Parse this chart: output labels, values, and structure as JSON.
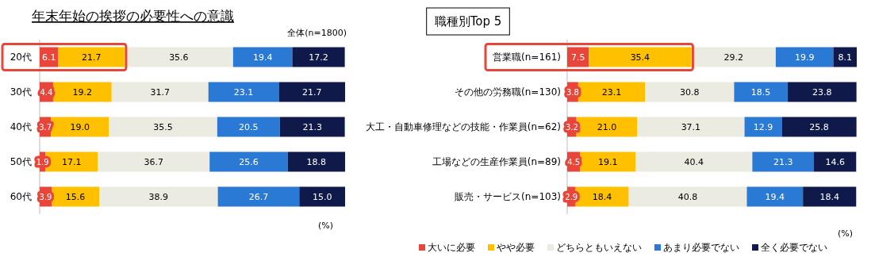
{
  "chart_data": [
    {
      "type": "bar",
      "orientation": "horizontal",
      "stacked": true,
      "title": "年末年始の挨拶の必要性への意識",
      "categories": [
        "20代",
        "30代",
        "40代",
        "50代",
        "60代"
      ],
      "series": [
        {
          "color": "#e8463a",
          "values": [
            6.1,
            4.4,
            3.7,
            1.9,
            3.9
          ],
          "value_labels": [
            "6.1",
            "4.4",
            "3.7",
            "1.9",
            "3.9"
          ]
        },
        {
          "color": "#ffc000",
          "values": [
            21.7,
            19.2,
            19.0,
            17.1,
            15.6
          ],
          "value_labels": [
            "21.7",
            "19.2",
            "19.0",
            "17.1",
            "15.6"
          ]
        },
        {
          "color": "#ecebe2",
          "values": [
            35.6,
            31.7,
            35.5,
            36.7,
            38.9
          ],
          "value_labels": [
            "35.6",
            "31.7",
            "35.5",
            "36.7",
            "38.9"
          ]
        },
        {
          "color": "#2a7ad5",
          "values": [
            19.4,
            23.1,
            20.5,
            25.6,
            26.7
          ],
          "value_labels": [
            "19.4",
            "23.1",
            "20.5",
            "25.6",
            "26.7"
          ]
        },
        {
          "color": "#101a4a",
          "values": [
            17.2,
            21.7,
            21.3,
            18.8,
            15.0
          ],
          "value_labels": [
            "17.2",
            "21.7",
            "21.3",
            "18.8",
            "15.0"
          ]
        }
      ],
      "annotations": [
        "全体(n=1800)",
        "(%)"
      ]
    },
    {
      "type": "bar",
      "orientation": "horizontal",
      "stacked": true,
      "legend": "bottom",
      "title": "職種別Top 5",
      "categories": [
        "営業職(n=161)",
        "その他の労務職(n=130)",
        "大工・自動車修理などの技能・作業員(n=62)",
        "工場などの生産作業員(n=89)",
        "販売・サービス(n=103)"
      ],
      "series": [
        {
          "name": "大いに必要",
          "color": "#e8463a",
          "values": [
            7.5,
            3.8,
            3.2,
            4.5,
            2.9
          ],
          "value_labels": [
            "7.5",
            "3.8",
            "3.2",
            "4.5",
            "2.9"
          ]
        },
        {
          "name": "やや必要",
          "color": "#ffc000",
          "values": [
            35.4,
            23.1,
            21.0,
            19.1,
            18.4
          ],
          "value_labels": [
            "35.4",
            "23.1",
            "21.0",
            "19.1",
            "18.4"
          ]
        },
        {
          "name": "どちらともいえない",
          "color": "#ecebe2",
          "values": [
            29.2,
            30.8,
            37.1,
            40.4,
            40.8
          ],
          "value_labels": [
            "29.2",
            "30.8",
            "37.1",
            "40.4",
            "40.8"
          ]
        },
        {
          "name": "あまり必要でない",
          "color": "#2a7ad5",
          "values": [
            19.9,
            18.5,
            12.9,
            21.3,
            19.4
          ],
          "value_labels": [
            "19.9",
            "18.5",
            "12.9",
            "21.3",
            "19.4"
          ]
        },
        {
          "name": "全く必要でない",
          "color": "#101a4a",
          "values": [
            8.1,
            23.8,
            25.8,
            14.6,
            18.4
          ],
          "value_labels": [
            "8.1",
            "23.8",
            "25.8",
            "14.6",
            "18.4"
          ]
        }
      ],
      "annotations": [
        "(%)"
      ]
    }
  ]
}
